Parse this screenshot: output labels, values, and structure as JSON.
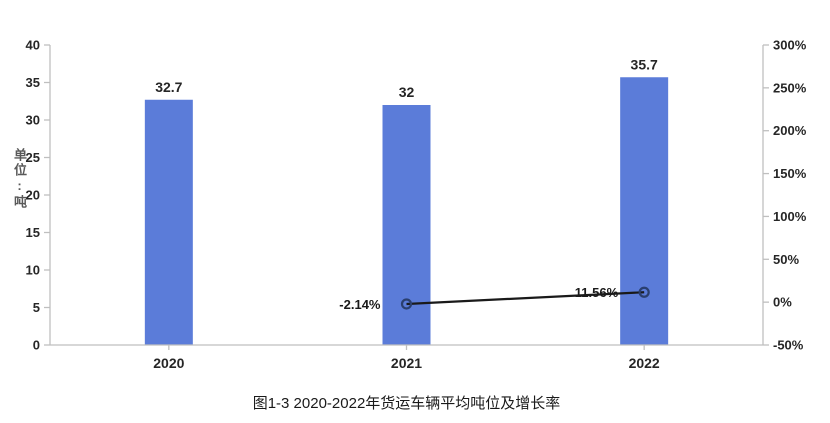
{
  "chart_data": {
    "type": "combo",
    "caption": "图1-3 2020-2022年货运车辆平均吨位及增长率",
    "categories": [
      "2020",
      "2021",
      "2022"
    ],
    "series": [
      {
        "id": "average-tonnage-bars",
        "type": "bar",
        "axis": "left",
        "color": "#5B7CD9",
        "values": [
          32.7,
          32,
          35.7
        ],
        "labels": [
          "32.7",
          "32",
          "35.7"
        ]
      },
      {
        "id": "growth-rate-line",
        "type": "line",
        "axis": "right",
        "line_color": "#1A1A1A",
        "marker_color": "#2A3F6F",
        "values": [
          null,
          -2.14,
          11.56
        ],
        "labels": [
          null,
          "-2.14%",
          "11.56%"
        ]
      }
    ],
    "left_axis": {
      "title": "单位:吨",
      "min": 0,
      "max": 40,
      "tick_values": [
        0,
        5,
        10,
        15,
        20,
        25,
        30,
        35,
        40
      ],
      "tick_labels": [
        "0",
        "5",
        "10",
        "15",
        "20",
        "25",
        "30",
        "35",
        "40"
      ]
    },
    "right_axis": {
      "min": -50,
      "max": 300,
      "tick_values": [
        -50,
        0,
        50,
        100,
        150,
        200,
        250,
        300
      ],
      "tick_labels": [
        "-50%",
        "0%",
        "50%",
        "100%",
        "150%",
        "200%",
        "250%",
        "300%"
      ]
    },
    "grid": false,
    "legend": null
  },
  "colors": {
    "axis_line": "#BFBFBF",
    "tick_text": "#262626",
    "axis_title_text": "#595959",
    "background": "#FFFFFF"
  }
}
